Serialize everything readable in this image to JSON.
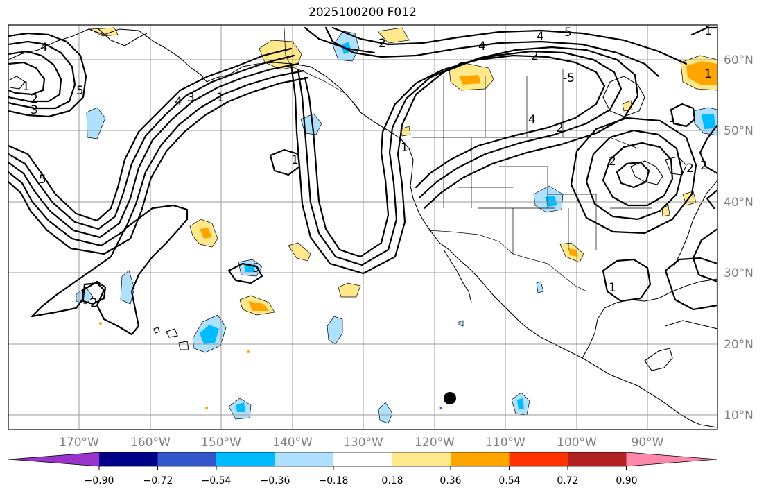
{
  "title": "2025100200 F012",
  "lon_ticks": [
    "170°W",
    "160°W",
    "150°W",
    "140°W",
    "130°W",
    "120°W",
    "110°W",
    "100°W",
    "90°W"
  ],
  "lat_ticks": [
    "60°N",
    "50°N",
    "40°N",
    "30°N",
    "20°N",
    "10°N"
  ],
  "colorbar": {
    "ticks": [
      "−0.90",
      "−0.72",
      "−0.54",
      "−0.36",
      "−0.18",
      "0.18",
      "0.36",
      "0.54",
      "0.72",
      "0.90"
    ],
    "colors": [
      "#9933cc",
      "#000088",
      "#3355cc",
      "#00bbff",
      "#aee0ff",
      "#ffffff",
      "#ffe98a",
      "#ffa500",
      "#ff3300",
      "#b22222",
      "#ff88aa"
    ]
  },
  "contour_labels": [
    "4",
    "2",
    "4",
    "5",
    "2",
    "4",
    "-5",
    "4",
    "2",
    "1",
    "4",
    "3",
    "1",
    "2",
    "3",
    "5",
    "5",
    "1",
    "1",
    "2",
    "5",
    "1",
    "1",
    "1",
    "2",
    "2",
    "2",
    "1"
  ],
  "colors": {
    "grid": "#9a9a9a",
    "tick_text": "#808080",
    "positive_light": "#ffe98a",
    "positive_mid": "#ffa500",
    "negative_light": "#aee0ff",
    "negative_mid": "#00bbff",
    "negative_deep": "#3355cc"
  }
}
